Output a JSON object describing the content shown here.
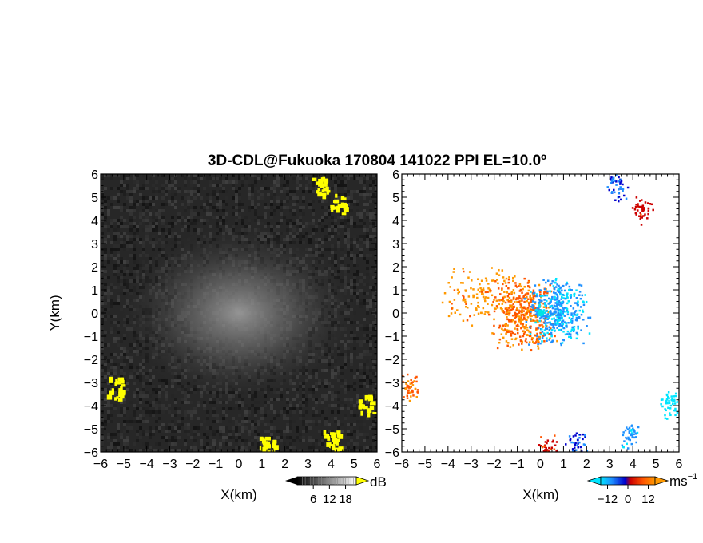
{
  "chart_data": {
    "title": "3D-CDL@Fukuoka 170804 141022 PPI EL=10.0º",
    "panels": [
      {
        "type": "heatmap",
        "quantity": "reflectivity",
        "xlabel": "X(km)",
        "ylabel": "Y(km)",
        "xlim": [
          -6,
          6
        ],
        "ylim": [
          -6,
          6
        ],
        "x_ticks": [
          "−6",
          "−5",
          "−4",
          "−3",
          "−2",
          "−1",
          "0",
          "1",
          "2",
          "3",
          "4",
          "5",
          "6"
        ],
        "y_ticks": [
          "−6",
          "−5",
          "−4",
          "−3",
          "−2",
          "−1",
          "0",
          "1",
          "2",
          "3",
          "4",
          "5",
          "6"
        ],
        "colorbar": {
          "ticks": [
            "6",
            "12",
            "18"
          ],
          "tick_values": [
            6,
            12,
            18
          ],
          "range": [
            0,
            22
          ],
          "unit": "dB",
          "colors": [
            "#000000",
            "#ffffff"
          ],
          "over_color": "#ffff00"
        }
      },
      {
        "type": "heatmap",
        "quantity": "doppler-velocity",
        "xlabel": "X(km)",
        "ylabel": "",
        "xlim": [
          -6,
          6
        ],
        "ylim": [
          -6,
          6
        ],
        "x_ticks": [
          "−6",
          "−5",
          "−4",
          "−3",
          "−2",
          "−1",
          "0",
          "1",
          "2",
          "3",
          "4",
          "5",
          "6"
        ],
        "y_ticks": [
          "−6",
          "−5",
          "−4",
          "−3",
          "−2",
          "−1",
          "0",
          "1",
          "2",
          "3",
          "4",
          "5",
          "6"
        ],
        "colorbar": {
          "ticks": [
            "−12",
            "0",
            "12"
          ],
          "tick_values": [
            -12,
            0,
            12
          ],
          "range": [
            -16,
            16
          ],
          "unit": "ms",
          "unit_superscript": "−1",
          "colors": [
            "#00e5ff",
            "#1e90ff",
            "#0000cc",
            "#cc0000",
            "#ff5500",
            "#ff9900"
          ]
        }
      }
    ],
    "echo_regions": {
      "reflectivity_yellow": [
        {
          "x": 3.5,
          "y": 5.5
        },
        {
          "x": 4.3,
          "y": 4.7
        },
        {
          "x": -5.4,
          "y": -3.2
        },
        {
          "x": 5.5,
          "y": -3.9
        },
        {
          "x": 4.0,
          "y": -5.4
        },
        {
          "x": 1.2,
          "y": -5.7
        }
      ],
      "velocity_clusters": [
        {
          "x": -0.7,
          "y": 0.0,
          "velocity": 10
        },
        {
          "x": 0.7,
          "y": 0.0,
          "velocity": -10
        },
        {
          "x": -2.5,
          "y": 0.8,
          "velocity": 13
        },
        {
          "x": -5.7,
          "y": -3.2,
          "velocity": 9
        },
        {
          "x": 3.3,
          "y": 5.4,
          "velocity": -5
        },
        {
          "x": 4.4,
          "y": 4.5,
          "velocity": 3
        },
        {
          "x": 5.6,
          "y": -3.9,
          "velocity": -14
        },
        {
          "x": 3.8,
          "y": -5.2,
          "velocity": -9
        },
        {
          "x": 1.5,
          "y": -5.6,
          "velocity": -5
        },
        {
          "x": 0.3,
          "y": -5.9,
          "velocity": 4
        }
      ]
    }
  }
}
